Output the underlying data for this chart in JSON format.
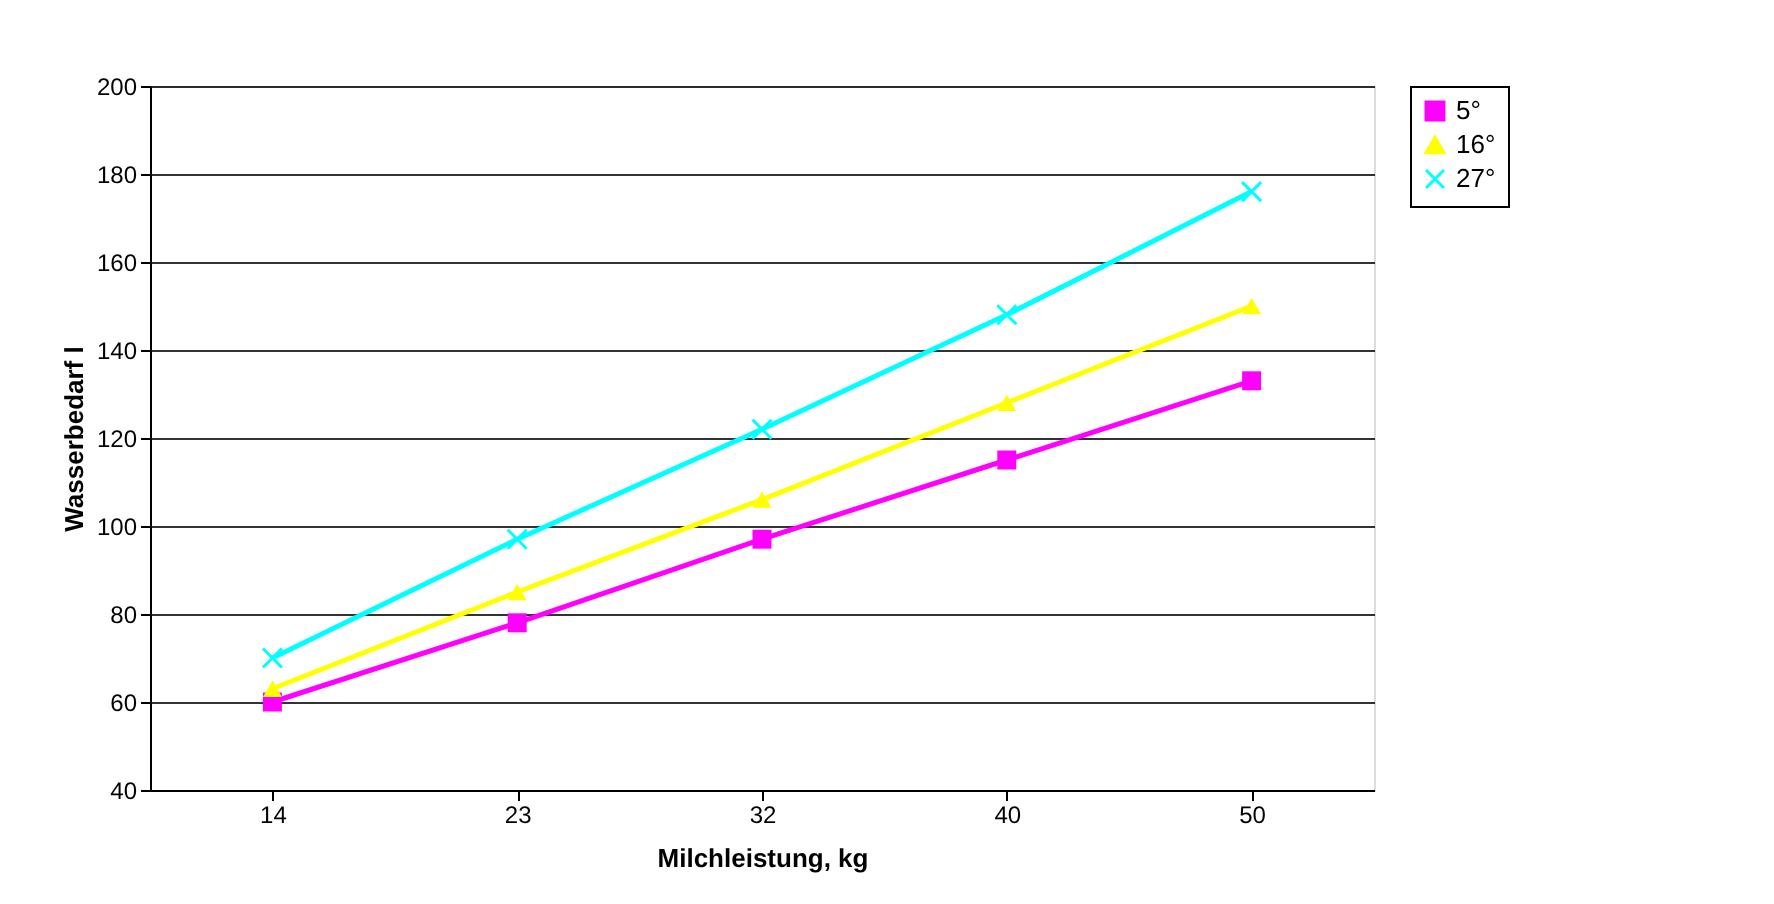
{
  "chart_data": {
    "type": "line",
    "xlabel": "Milchleistung, kg",
    "ylabel": "Wasserbedarf l",
    "categories": [
      "14",
      "23",
      "32",
      "40",
      "50"
    ],
    "series": [
      {
        "name": "5°",
        "color": "#ff00ff",
        "marker": "square",
        "values": [
          60,
          78,
          97,
          115,
          133
        ]
      },
      {
        "name": "16°",
        "color": "#ffff00",
        "marker": "triangle",
        "values": [
          63,
          85,
          106,
          128,
          150
        ]
      },
      {
        "name": "27°",
        "color": "#00ffff",
        "marker": "cross",
        "values": [
          70,
          97,
          122,
          148,
          176
        ]
      }
    ],
    "ylim": [
      40,
      200
    ],
    "yticks": [
      40,
      60,
      80,
      100,
      120,
      140,
      160,
      180,
      200
    ],
    "grid": "y",
    "legend": "right",
    "line_style": "solid"
  }
}
